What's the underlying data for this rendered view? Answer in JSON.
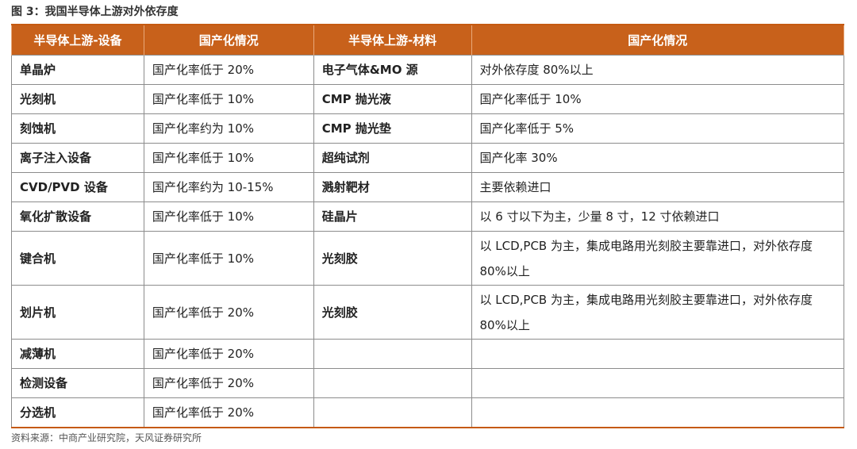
{
  "title": "图 3：我国半导体上游对外依存度",
  "table": {
    "header": [
      "半导体上游-设备",
      "国产化情况",
      "半导体上游-材料",
      "国产化情况"
    ],
    "rows": [
      [
        "单晶炉",
        "国产化率低于 20%",
        "电子气体&MO 源",
        "对外依存度 80%以上"
      ],
      [
        "光刻机",
        "国产化率低于 10%",
        "CMP 抛光液",
        "国产化率低于 10%"
      ],
      [
        "刻蚀机",
        "国产化率约为 10%",
        "CMP 抛光垫",
        "国产化率低于 5%"
      ],
      [
        "离子注入设备",
        "国产化率低于 10%",
        "超纯试剂",
        "国产化率 30%"
      ],
      [
        "CVD/PVD 设备",
        "国产化率约为 10-15%",
        "溅射靶材",
        "主要依赖进口"
      ],
      [
        "氧化扩散设备",
        "国产化率低于 10%",
        "硅晶片",
        "以 6 寸以下为主，少量 8 寸，12 寸依赖进口"
      ],
      [
        "键合机",
        "国产化率低于 10%",
        "光刻胶",
        "以 LCD,PCB 为主，集成电路用光刻胶主要靠进口，对外依存度 80%以上"
      ],
      [
        "划片机",
        "国产化率低于 20%",
        "光刻胶",
        "以 LCD,PCB 为主，集成电路用光刻胶主要靠进口，对外依存度 80%以上"
      ],
      [
        "减薄机",
        "国产化率低于 20%"
      ],
      [
        "检测设备",
        "国产化率低于 20%"
      ],
      [
        "分选机",
        "国产化率低于 20%"
      ]
    ]
  },
  "source": "资料来源：中商产业研究院，天风证券研究所"
}
